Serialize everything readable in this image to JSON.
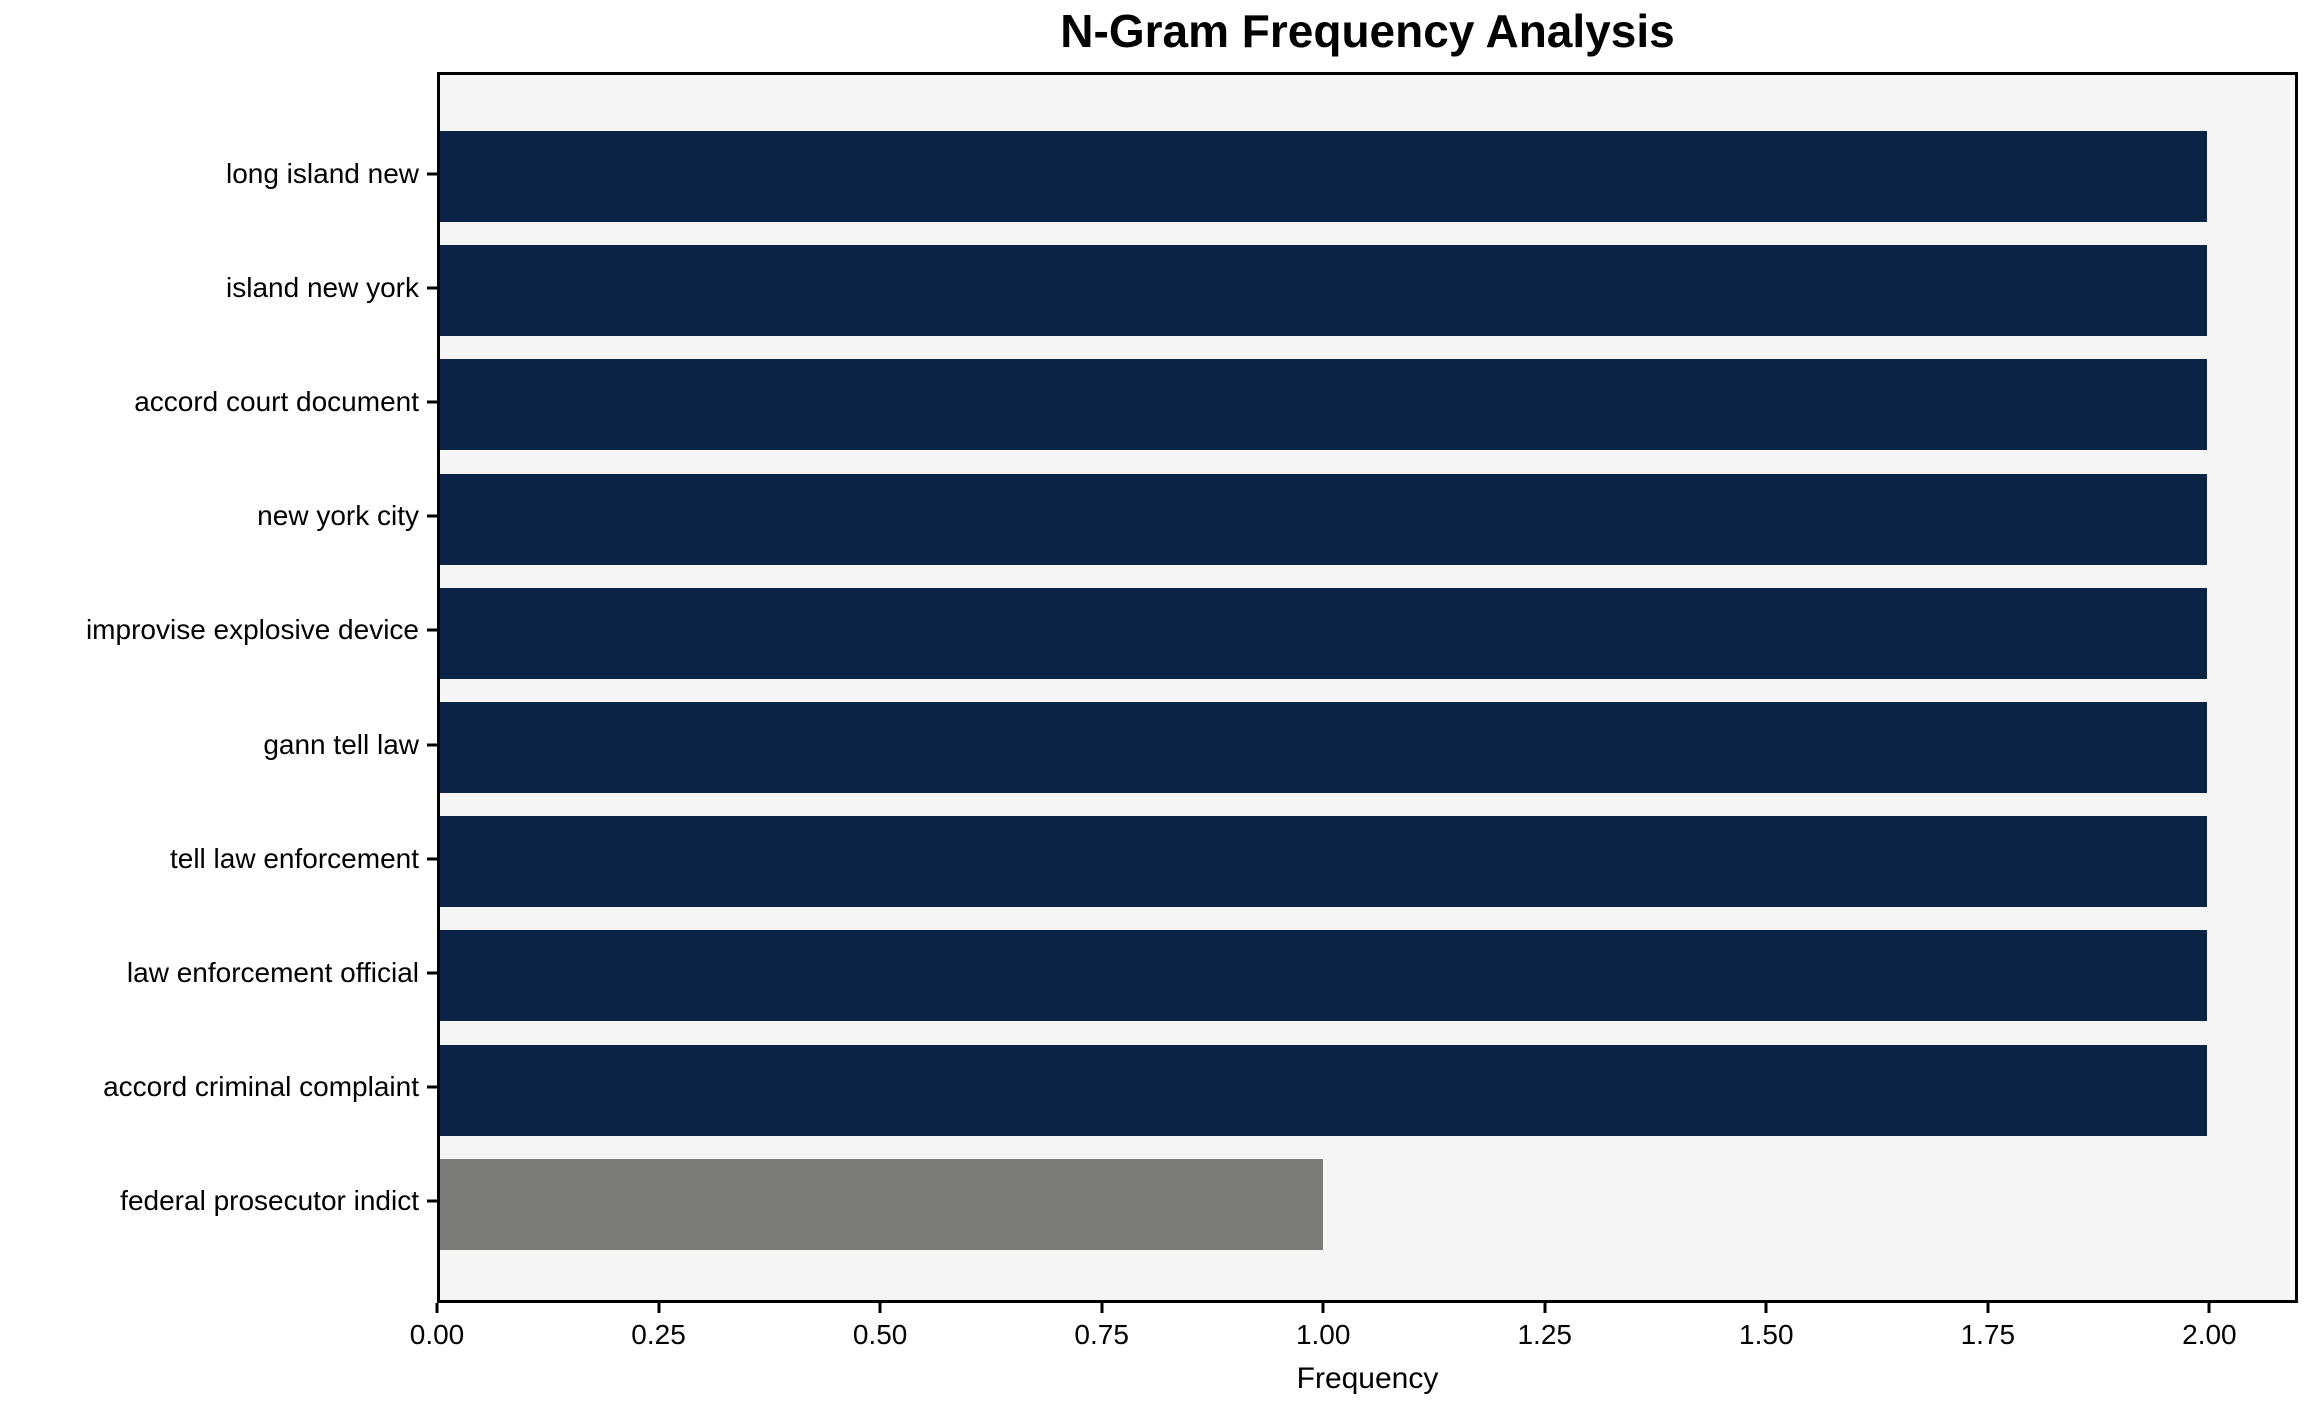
{
  "chart_data": {
    "type": "bar",
    "orientation": "horizontal",
    "title": "N-Gram Frequency Analysis",
    "xlabel": "Frequency",
    "ylabel": "",
    "categories": [
      "long island new",
      "island new york",
      "accord court document",
      "new york city",
      "improvise explosive device",
      "gann tell law",
      "tell law enforcement",
      "law enforcement official",
      "accord criminal complaint",
      "federal prosecutor indict"
    ],
    "values": [
      2,
      2,
      2,
      2,
      2,
      2,
      2,
      2,
      2,
      1
    ],
    "bar_colors": [
      "#0b2446",
      "#0b2446",
      "#0b2446",
      "#0b2446",
      "#0b2446",
      "#0b2446",
      "#0b2446",
      "#0b2446",
      "#0b2446",
      "#7a7a76"
    ],
    "xlim": [
      0,
      2.1
    ],
    "xticks": [
      0.0,
      0.25,
      0.5,
      0.75,
      1.0,
      1.25,
      1.5,
      1.75,
      2.0
    ],
    "xtick_labels": [
      "0.00",
      "0.25",
      "0.50",
      "0.75",
      "1.00",
      "1.25",
      "1.50",
      "1.75",
      "2.00"
    ],
    "grid": false,
    "legend_position": "none",
    "colors": {
      "bar_primary": "#0b2446",
      "bar_highlight": "#7a7a76",
      "plot_background": "#f5f5f5",
      "figure_background": "#ffffff",
      "axis": "#000000",
      "text": "#000000"
    }
  }
}
